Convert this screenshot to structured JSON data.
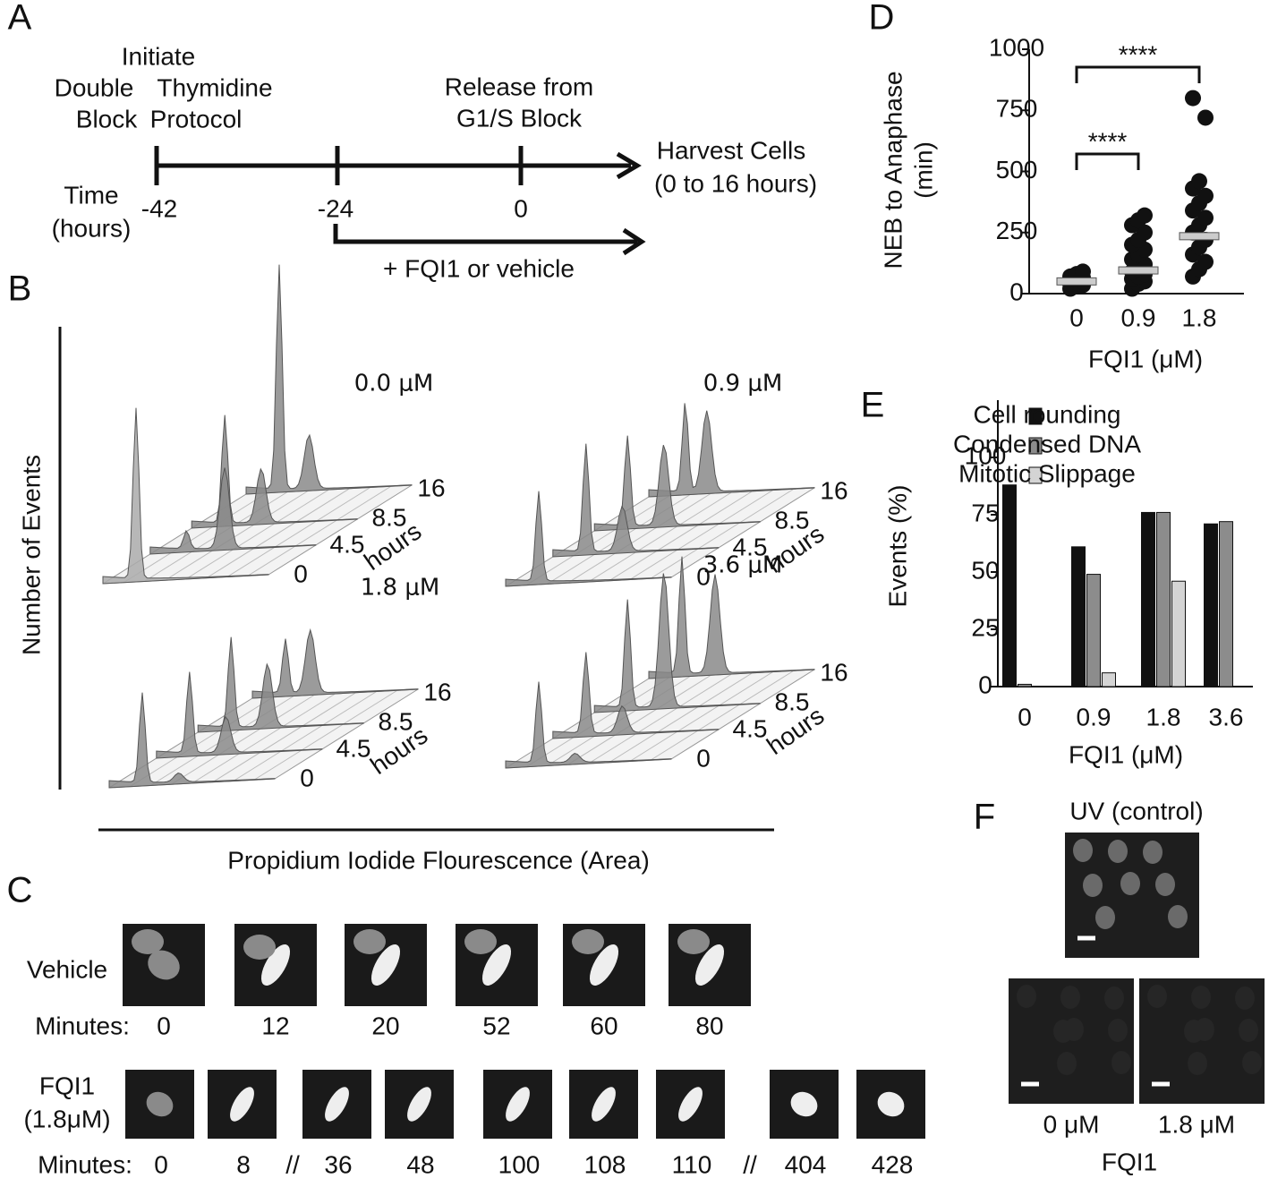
{
  "panel_labels": [
    "A",
    "B",
    "C",
    "D",
    "E",
    "F"
  ],
  "panel_a": {
    "initiate": [
      "Initiate",
      "Double",
      "Thymidine",
      "Block",
      "Protocol"
    ],
    "release": [
      "Release from",
      "G1/S Block"
    ],
    "harvest": [
      "Harvest Cells",
      "(0 to 16 hours)"
    ],
    "time_label": [
      "Time",
      "(hours)"
    ],
    "timepoints": [
      "-42",
      "-24",
      "0"
    ],
    "treatment": "+ FQI1  or vehicle"
  },
  "panel_b": {
    "ylabel": "Number of Events",
    "xlabel": "Propidium Iodide Flourescence (Area)",
    "subpanels": [
      {
        "concentration": "0.0 μM",
        "times": [
          "16",
          "8.5",
          "4.5",
          "0"
        ],
        "unit": "hours"
      },
      {
        "concentration": "0.9 μM",
        "times": [
          "16",
          "8.5",
          "4.5",
          "0"
        ],
        "unit": "hours"
      },
      {
        "concentration": "1.8 μM",
        "times": [
          "16",
          "8.5",
          "4.5",
          "0"
        ],
        "unit": "hours"
      },
      {
        "concentration": "3.6 μM",
        "times": [
          "16",
          "8.5",
          "4.5",
          "0"
        ],
        "unit": "hours"
      }
    ]
  },
  "panel_c": {
    "vehicle": {
      "label": "Vehicle",
      "minutes_label": "Minutes:",
      "times": [
        "0",
        "12",
        "20",
        "52",
        "60",
        "80"
      ]
    },
    "fqi1": {
      "label": [
        "FQI1",
        "(1.8μM)"
      ],
      "minutes_label": "Minutes:",
      "times": [
        "0",
        "8",
        "36",
        "48",
        "100",
        "108",
        "110",
        "404",
        "428"
      ],
      "breaks": [
        "//",
        "//"
      ]
    }
  },
  "panel_f": {
    "title": "UV (control)",
    "conditions": [
      "0 μM",
      "1.8 μM"
    ],
    "xlabel": "FQI1"
  },
  "chart_data": [
    {
      "type": "strip",
      "ylabel": [
        "NEB to Anaphase",
        "(min)"
      ],
      "xlabel": "FQI1 (μM)",
      "categories": [
        "0",
        "0.9",
        "1.8"
      ],
      "points": [
        [
          20,
          30,
          35,
          40,
          45,
          50,
          55,
          60,
          65,
          70,
          80,
          90
        ],
        [
          20,
          40,
          50,
          60,
          70,
          80,
          90,
          100,
          120,
          140,
          160,
          180,
          200,
          220,
          250,
          280,
          300,
          320
        ],
        [
          70,
          100,
          130,
          160,
          190,
          220,
          250,
          280,
          310,
          340,
          370,
          400,
          430,
          460,
          720,
          800
        ]
      ],
      "means": [
        50,
        95,
        235
      ],
      "color": "#111111",
      "mean_color": "#cccccc",
      "annotations": [
        "****",
        "****"
      ],
      "ylim": [
        0,
        1000
      ],
      "yticks": [
        0,
        250,
        500,
        750,
        1000
      ]
    },
    {
      "type": "bar",
      "ylabel": "Events (%)",
      "xlabel": "FQI1 (μM)",
      "categories": [
        "0",
        "0.9",
        "1.8",
        "3.6"
      ],
      "series": [
        {
          "name": "Cell rounding",
          "color": "#111111",
          "values": [
            88,
            61,
            76,
            71
          ]
        },
        {
          "name": "Condensed DNA",
          "color": "#8c8c8c",
          "values": [
            1,
            49,
            76,
            72
          ]
        },
        {
          "name": "Mitotic Slippage",
          "color": "#d4d4d4",
          "values": [
            null,
            6,
            46,
            null
          ]
        }
      ],
      "legend": "upper right",
      "ylim": [
        0,
        125
      ],
      "yticks": [
        0,
        25,
        50,
        75,
        100
      ]
    }
  ]
}
